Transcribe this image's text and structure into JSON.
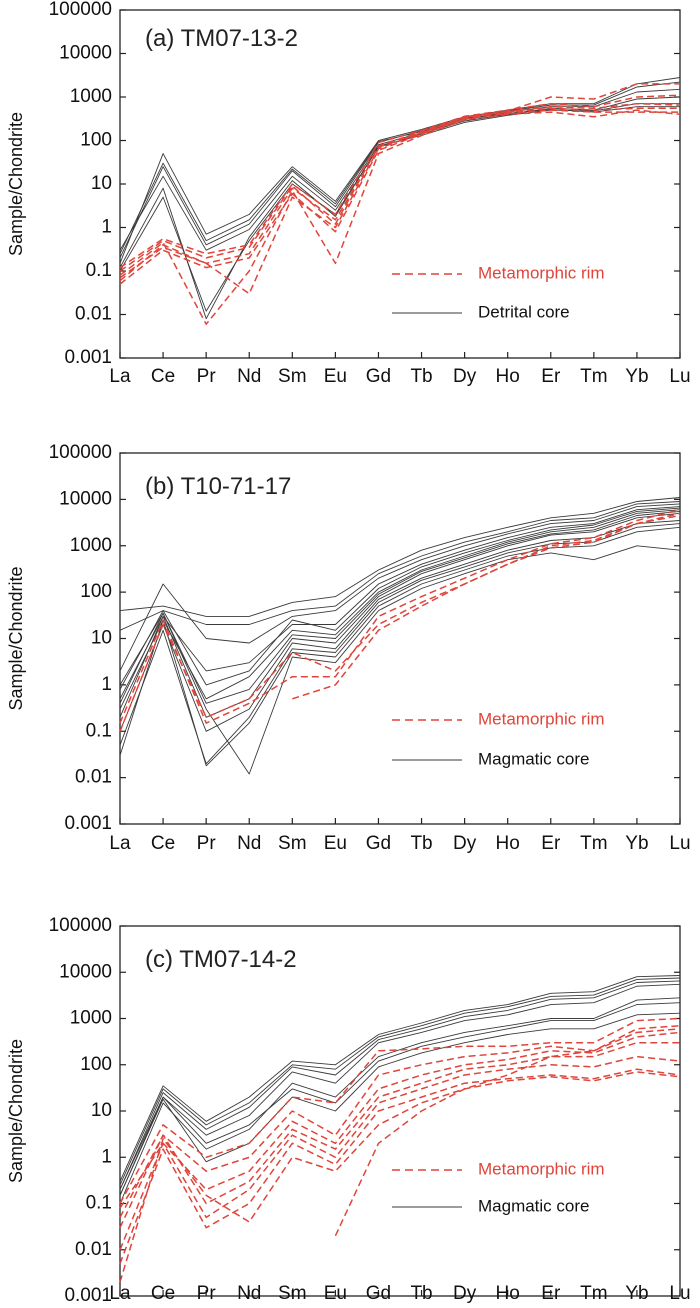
{
  "figure_colors": {
    "rim": "#e0443a",
    "core": "#3a3a3a",
    "axis": "#222222",
    "text": "#111111"
  },
  "chart_data": [
    {
      "type": "line",
      "title": "(a) TM07-13-2",
      "xlabel": "",
      "ylabel": "Sample/Chondrite",
      "yscale": "log",
      "ylim": [
        0.001,
        100000
      ],
      "ytick_labels": [
        "0.001",
        "0.01",
        "0.1",
        "1",
        "10",
        "100",
        "1000",
        "10000",
        "100000"
      ],
      "categories": [
        "La",
        "Ce",
        "Pr",
        "Nd",
        "Sm",
        "Eu",
        "Gd",
        "Tb",
        "Dy",
        "Ho",
        "Er",
        "Tm",
        "Yb",
        "Lu"
      ],
      "legend": [
        {
          "label": "Metamorphic rim",
          "style": "dashed",
          "color": "#e0443a"
        },
        {
          "label": "Detrital core",
          "style": "solid",
          "color": "#3a3a3a"
        }
      ],
      "series": [
        {
          "name": "Detrital core",
          "values": [
            0.15,
            50,
            0.7,
            2,
            25,
            4,
            100,
            180,
            350,
            500,
            700,
            700,
            2000,
            2800
          ]
        },
        {
          "name": "Detrital core",
          "values": [
            0.2,
            25,
            0.4,
            1.2,
            20,
            3,
            90,
            170,
            330,
            480,
            650,
            650,
            1700,
            2200
          ]
        },
        {
          "name": "Detrital core",
          "values": [
            0.3,
            15,
            0.3,
            0.9,
            15,
            2.5,
            80,
            150,
            300,
            450,
            600,
            600,
            1300,
            1500
          ]
        },
        {
          "name": "Detrital core",
          "values": [
            0.1,
            5,
            0.012,
            0.5,
            10,
            2,
            70,
            140,
            280,
            400,
            550,
            500,
            900,
            1000
          ]
        },
        {
          "name": "Detrital core",
          "values": [
            0.12,
            8,
            0.008,
            0.6,
            12,
            1.8,
            75,
            130,
            260,
            380,
            500,
            480,
            700,
            700
          ]
        },
        {
          "name": "Detrital core",
          "values": [
            0.25,
            30,
            0.5,
            1.5,
            22,
            3.5,
            95,
            160,
            320,
            420,
            520,
            450,
            600,
            600
          ]
        },
        {
          "name": "Metamorphic rim",
          "values": [
            0.06,
            0.4,
            0.15,
            0.25,
            8,
            1.5,
            70,
            150,
            330,
            450,
            550,
            500,
            550,
            550
          ]
        },
        {
          "name": "Metamorphic rim",
          "values": [
            0.1,
            0.5,
            0.2,
            0.35,
            9,
            1.2,
            75,
            160,
            350,
            480,
            1000,
            900,
            2000,
            2000
          ]
        },
        {
          "name": "Metamorphic rim",
          "values": [
            0.05,
            0.3,
            0.12,
            0.2,
            6,
            0.8,
            60,
            140,
            310,
            420,
            500,
            450,
            450,
            450
          ]
        },
        {
          "name": "Metamorphic rim",
          "values": [
            0.08,
            0.45,
            0.006,
            0.1,
            7,
            0.15,
            50,
            130,
            300,
            400,
            450,
            350,
            500,
            400
          ]
        },
        {
          "name": "Metamorphic rim",
          "values": [
            0.12,
            0.55,
            0.25,
            0.4,
            10,
            2,
            90,
            170,
            360,
            500,
            700,
            600,
            1000,
            1100
          ]
        },
        {
          "name": "Metamorphic rim",
          "values": [
            0.07,
            0.35,
            0.15,
            0.03,
            5,
            1,
            65,
            150,
            340,
            460,
            600,
            550,
            700,
            650
          ]
        }
      ]
    },
    {
      "type": "line",
      "title": "(b) T10-71-17",
      "xlabel": "",
      "ylabel": "Sample/Chondrite",
      "yscale": "log",
      "ylim": [
        0.001,
        100000
      ],
      "ytick_labels": [
        "0.001",
        "0.01",
        "0.1",
        "1",
        "10",
        "100",
        "1000",
        "10000",
        "100000"
      ],
      "categories": [
        "La",
        "Ce",
        "Pr",
        "Nd",
        "Sm",
        "Eu",
        "Gd",
        "Tb",
        "Dy",
        "Ho",
        "Er",
        "Tm",
        "Yb",
        "Lu"
      ],
      "legend": [
        {
          "label": "Metamorphic rim",
          "style": "dashed",
          "color": "#e0443a"
        },
        {
          "label": "Magmatic core",
          "style": "solid",
          "color": "#3a3a3a"
        }
      ],
      "series": [
        {
          "name": "Magmatic core",
          "values": [
            40,
            50,
            30,
            30,
            60,
            80,
            300,
            800,
            1500,
            2500,
            4000,
            5000,
            9000,
            11000
          ]
        },
        {
          "name": "Magmatic core",
          "values": [
            15,
            40,
            20,
            20,
            40,
            50,
            250,
            600,
            1200,
            2000,
            3500,
            4000,
            8000,
            9000
          ]
        },
        {
          "name": "Magmatic core",
          "values": [
            2,
            150,
            10,
            8,
            30,
            40,
            200,
            500,
            1000,
            1800,
            3000,
            3500,
            7000,
            8000
          ]
        },
        {
          "name": "Magmatic core",
          "values": [
            0.5,
            30,
            2,
            3,
            20,
            20,
            150,
            400,
            800,
            1500,
            2500,
            3000,
            6000,
            7000
          ]
        },
        {
          "name": "Magmatic core",
          "values": [
            0.3,
            25,
            0.5,
            1.5,
            15,
            12,
            100,
            300,
            600,
            1200,
            2000,
            2500,
            5000,
            6000
          ]
        },
        {
          "name": "Magmatic core",
          "values": [
            0.2,
            30,
            0.2,
            0.5,
            10,
            8,
            80,
            250,
            500,
            1000,
            1700,
            2000,
            4000,
            5000
          ]
        },
        {
          "name": "Magmatic core",
          "values": [
            0.1,
            20,
            0.1,
            0.3,
            8,
            6,
            70,
            200,
            400,
            800,
            1300,
            1500,
            3000,
            3500
          ]
        },
        {
          "name": "Magmatic core",
          "values": [
            0.05,
            15,
            0.02,
            0.2,
            6,
            5,
            60,
            180,
            350,
            700,
            1100,
            1200,
            2500,
            3000
          ]
        },
        {
          "name": "Magmatic core",
          "values": [
            0.03,
            25,
            0.018,
            0.15,
            5,
            4,
            50,
            150,
            300,
            600,
            900,
            1000,
            2000,
            2500
          ]
        },
        {
          "name": "Magmatic core",
          "values": [
            1,
            35,
            0.3,
            0.012,
            4,
            3,
            40,
            120,
            250,
            500,
            700,
            500,
            1000,
            800
          ]
        },
        {
          "name": "Magmatic core",
          "values": [
            0.8,
            40,
            1,
            2,
            25,
            15,
            120,
            350,
            700,
            1300,
            2200,
            2800,
            5500,
            6500
          ]
        },
        {
          "name": "Magmatic core",
          "values": [
            0.4,
            35,
            0.4,
            0.8,
            12,
            10,
            90,
            280,
            550,
            1100,
            1800,
            2200,
            4500,
            5500
          ]
        },
        {
          "name": "Metamorphic rim",
          "values": [
            0.1,
            20,
            0.2,
            0.5,
            5,
            2,
            20,
            60,
            150,
            400,
            900,
            1200,
            3000,
            5000
          ]
        },
        {
          "name": "Metamorphic rim",
          "values": [
            0.15,
            25,
            0.15,
            0.4,
            1.5,
            1.5,
            30,
            80,
            200,
            500,
            1100,
            1500,
            3500,
            6000
          ]
        },
        {
          "name": "Metamorphic rim",
          "values": [
            null,
            null,
            null,
            null,
            0.5,
            1,
            15,
            50,
            150,
            400,
            1000,
            1300,
            3000,
            4500
          ]
        }
      ]
    },
    {
      "type": "line",
      "title": "(c) TM07-14-2",
      "xlabel": "",
      "ylabel": "Sample/Chondrite",
      "yscale": "log",
      "ylim": [
        0.001,
        100000
      ],
      "ytick_labels": [
        "0.001",
        "0.01",
        "0.1",
        "1",
        "10",
        "100",
        "1000",
        "10000",
        "100000"
      ],
      "categories": [
        "La",
        "Ce",
        "Pr",
        "Nd",
        "Sm",
        "Eu",
        "Gd",
        "Tb",
        "Dy",
        "Ho",
        "Er",
        "Tm",
        "Yb",
        "Lu"
      ],
      "legend": [
        {
          "label": "Metamorphic rim",
          "style": "dashed",
          "color": "#e0443a"
        },
        {
          "label": "Magmatic core",
          "style": "solid",
          "color": "#3a3a3a"
        }
      ],
      "series": [
        {
          "name": "Magmatic core",
          "values": [
            0.3,
            35,
            6,
            20,
            120,
            100,
            450,
            800,
            1500,
            2000,
            3500,
            3800,
            8000,
            8500
          ]
        },
        {
          "name": "Magmatic core",
          "values": [
            0.25,
            30,
            5,
            15,
            100,
            80,
            400,
            700,
            1300,
            1800,
            3000,
            3200,
            7000,
            7500
          ]
        },
        {
          "name": "Magmatic core",
          "values": [
            0.2,
            25,
            4,
            12,
            90,
            60,
            350,
            600,
            1100,
            1500,
            2600,
            2800,
            6000,
            6500
          ]
        },
        {
          "name": "Magmatic core",
          "values": [
            0.15,
            20,
            3,
            8,
            70,
            40,
            300,
            500,
            900,
            1200,
            2000,
            2200,
            5000,
            5500
          ]
        },
        {
          "name": "Magmatic core",
          "values": [
            0.1,
            15,
            1.5,
            4,
            40,
            20,
            150,
            300,
            500,
            700,
            1000,
            1000,
            2500,
            2800
          ]
        },
        {
          "name": "Magmatic core",
          "values": [
            0.2,
            20,
            2,
            5,
            30,
            15,
            120,
            250,
            400,
            600,
            900,
            900,
            2000,
            2200
          ]
        },
        {
          "name": "Magmatic core",
          "values": [
            0.15,
            18,
            0.8,
            2,
            20,
            10,
            90,
            180,
            300,
            450,
            600,
            600,
            1200,
            1300
          ]
        },
        {
          "name": "Metamorphic rim",
          "values": [
            0.1,
            5,
            1,
            2,
            20,
            15,
            200,
            220,
            250,
            250,
            300,
            300,
            900,
            1000
          ]
        },
        {
          "name": "Metamorphic rim",
          "values": [
            0.05,
            3,
            0.5,
            1,
            10,
            3,
            60,
            100,
            150,
            180,
            250,
            200,
            600,
            700
          ]
        },
        {
          "name": "Metamorphic rim",
          "values": [
            0.08,
            2,
            0.2,
            0.5,
            6,
            2,
            30,
            60,
            100,
            130,
            200,
            180,
            400,
            500
          ]
        },
        {
          "name": "Metamorphic rim",
          "values": [
            0.03,
            3,
            0.1,
            0.3,
            4,
            1.5,
            20,
            40,
            80,
            100,
            150,
            150,
            300,
            300
          ]
        },
        {
          "name": "Metamorphic rim",
          "values": [
            0.01,
            2,
            0.05,
            0.2,
            3,
            1,
            15,
            30,
            60,
            80,
            100,
            90,
            150,
            120
          ]
        },
        {
          "name": "Metamorphic rim",
          "values": [
            0.005,
            1.5,
            0.03,
            0.1,
            2,
            0.7,
            10,
            20,
            40,
            50,
            60,
            50,
            80,
            60
          ]
        },
        {
          "name": "Metamorphic rim",
          "values": [
            0.002,
            2.5,
            0.15,
            0.04,
            1,
            0.5,
            5,
            15,
            30,
            45,
            55,
            45,
            70,
            55
          ]
        },
        {
          "name": "Metamorphic rim",
          "values": [
            null,
            null,
            null,
            null,
            null,
            0.02,
            2,
            10,
            30,
            60,
            150,
            200,
            500,
            600
          ]
        }
      ]
    }
  ]
}
